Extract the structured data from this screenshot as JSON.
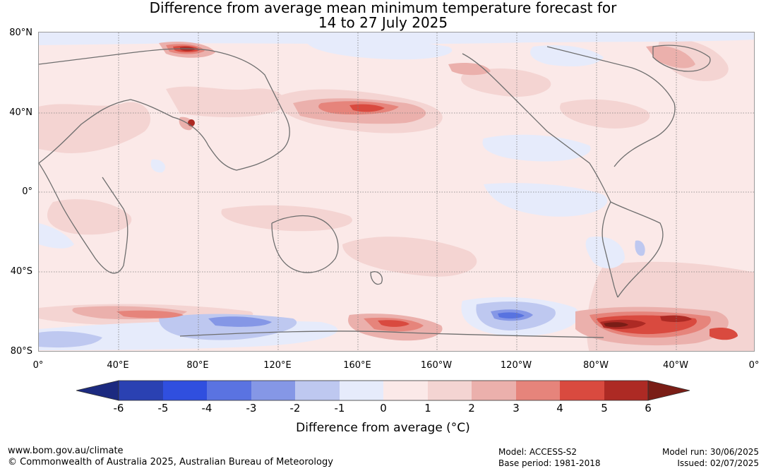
{
  "title": {
    "line1": "Difference from average mean minimum temperature forecast for",
    "line2": "14 to 27 July 2025"
  },
  "map": {
    "lat_labels": [
      "80°N",
      "40°N",
      "0°",
      "40°S",
      "80°S"
    ],
    "lon_labels": [
      "0°",
      "40°E",
      "80°E",
      "120°E",
      "160°E",
      "160°W",
      "120°W",
      "80°W",
      "40°W",
      "0°"
    ],
    "background_color": "#fbe9e8",
    "anomaly_regions": [
      {
        "label": "-1 to 0",
        "color": "#e6ebfb"
      },
      {
        "label": "-2 to -1",
        "color": "#bec8f0"
      },
      {
        "label": "-3 to -2",
        "color": "#8597e6"
      },
      {
        "label": "-4 to -3",
        "color": "#5873e0"
      },
      {
        "label": "1 to 2",
        "color": "#f4d4d2"
      },
      {
        "label": "2 to 3",
        "color": "#ebb0ac"
      },
      {
        "label": "3 to 4",
        "color": "#e6847b"
      },
      {
        "label": "4 to 5",
        "color": "#d94a3f"
      },
      {
        "label": "5 to 6",
        "color": "#ad2a24"
      },
      {
        "label": ">6",
        "color": "#7a1d16"
      }
    ]
  },
  "colorbar": {
    "title": "Difference from average (°C)",
    "ticks": [
      "-6",
      "-5",
      "-4",
      "-3",
      "-2",
      "-1",
      "0",
      "1",
      "2",
      "3",
      "4",
      "5",
      "6"
    ],
    "colors": [
      "#1c2a80",
      "#2a41b2",
      "#304fdf",
      "#5a73e1",
      "#8597e6",
      "#bec8f0",
      "#e6ebfb",
      "#fbe9e8",
      "#f4d4d2",
      "#ebb0ac",
      "#e6847b",
      "#d94a3f",
      "#ad2a24",
      "#7a1d16"
    ]
  },
  "footer": {
    "website": "www.bom.gov.au/climate",
    "copyright": "© Commonwealth of Australia 2025, Australian Bureau of Meteorology",
    "model": "Model: ACCESS-S2",
    "base_period": "Base period: 1981-2018",
    "model_run": "Model run: 30/06/2025",
    "issued": "Issued: 02/07/2025"
  }
}
